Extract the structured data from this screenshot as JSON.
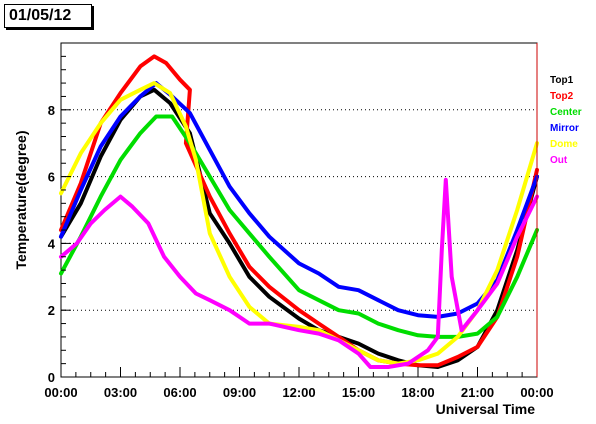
{
  "title": "01/05/12",
  "chart_data": {
    "type": "scatter",
    "xlabel": "Universal Time",
    "ylabel": "Temperature(degree)",
    "xlim": [
      0,
      24
    ],
    "ylim": [
      0,
      10
    ],
    "x_ticks": [
      {
        "value": 0,
        "label": "00:00"
      },
      {
        "value": 3,
        "label": "03:00"
      },
      {
        "value": 6,
        "label": "06:00"
      },
      {
        "value": 9,
        "label": "09:00"
      },
      {
        "value": 12,
        "label": "12:00"
      },
      {
        "value": 15,
        "label": "15:00"
      },
      {
        "value": 18,
        "label": "18:00"
      },
      {
        "value": 21,
        "label": "21:00"
      },
      {
        "value": 24,
        "label": "00:00"
      }
    ],
    "y_ticks": [
      0,
      2,
      4,
      6,
      8
    ],
    "grid": "horizontal dotted",
    "legend_position": "right",
    "series": [
      {
        "name": "Top1",
        "color": "#000000",
        "points": [
          [
            0,
            4.2
          ],
          [
            1,
            5.2
          ],
          [
            2,
            6.6
          ],
          [
            3,
            7.7
          ],
          [
            4,
            8.4
          ],
          [
            4.7,
            8.6
          ],
          [
            5.5,
            8.2
          ],
          [
            6.5,
            7.3
          ],
          [
            7.5,
            4.9
          ],
          [
            8.5,
            4.0
          ],
          [
            9.5,
            3.0
          ],
          [
            10.5,
            2.4
          ],
          [
            12,
            1.75
          ],
          [
            13,
            1.4
          ],
          [
            14,
            1.2
          ],
          [
            15,
            1.0
          ],
          [
            16,
            0.7
          ],
          [
            17,
            0.5
          ],
          [
            18,
            0.35
          ],
          [
            19,
            0.3
          ],
          [
            20,
            0.5
          ],
          [
            21,
            0.9
          ],
          [
            22,
            2.0
          ],
          [
            23,
            3.8
          ],
          [
            24,
            6.0
          ]
        ]
      },
      {
        "name": "Top2",
        "color": "#ff0000",
        "points": [
          [
            0,
            4.4
          ],
          [
            1,
            5.8
          ],
          [
            2,
            7.6
          ],
          [
            3,
            8.5
          ],
          [
            4,
            9.3
          ],
          [
            4.7,
            9.6
          ],
          [
            5.3,
            9.4
          ],
          [
            6,
            8.9
          ],
          [
            6.5,
            8.6
          ],
          [
            6.3,
            7.0
          ],
          [
            7.5,
            5.4
          ],
          [
            8.5,
            4.3
          ],
          [
            9.5,
            3.3
          ],
          [
            10.5,
            2.7
          ],
          [
            12,
            2.0
          ],
          [
            13,
            1.6
          ],
          [
            14,
            1.2
          ],
          [
            15,
            0.8
          ],
          [
            16,
            0.5
          ],
          [
            17,
            0.4
          ],
          [
            18,
            0.35
          ],
          [
            19,
            0.35
          ],
          [
            20,
            0.6
          ],
          [
            21,
            0.9
          ],
          [
            22,
            1.8
          ],
          [
            23,
            3.6
          ],
          [
            24,
            6.2
          ]
        ]
      },
      {
        "name": "Center",
        "color": "#00dd00",
        "points": [
          [
            0,
            3.1
          ],
          [
            1,
            4.2
          ],
          [
            2,
            5.4
          ],
          [
            3,
            6.5
          ],
          [
            4,
            7.3
          ],
          [
            4.8,
            7.8
          ],
          [
            5.6,
            7.8
          ],
          [
            6.5,
            7.0
          ],
          [
            7.5,
            6.0
          ],
          [
            8.5,
            5.0
          ],
          [
            9.5,
            4.3
          ],
          [
            10.5,
            3.6
          ],
          [
            12,
            2.6
          ],
          [
            13,
            2.3
          ],
          [
            14,
            2.0
          ],
          [
            15,
            1.9
          ],
          [
            16,
            1.6
          ],
          [
            17,
            1.4
          ],
          [
            18,
            1.25
          ],
          [
            19,
            1.2
          ],
          [
            20,
            1.2
          ],
          [
            21,
            1.3
          ],
          [
            22,
            1.8
          ],
          [
            23,
            3.0
          ],
          [
            24,
            4.4
          ]
        ]
      },
      {
        "name": "Mirror",
        "color": "#0000ff",
        "points": [
          [
            0,
            4.2
          ],
          [
            1,
            5.6
          ],
          [
            2,
            6.9
          ],
          [
            3,
            7.8
          ],
          [
            4,
            8.4
          ],
          [
            4.8,
            8.8
          ],
          [
            5.6,
            8.4
          ],
          [
            6.5,
            7.9
          ],
          [
            7.5,
            6.8
          ],
          [
            8.5,
            5.7
          ],
          [
            9.5,
            4.9
          ],
          [
            10.5,
            4.2
          ],
          [
            12,
            3.4
          ],
          [
            13,
            3.1
          ],
          [
            14,
            2.7
          ],
          [
            15,
            2.6
          ],
          [
            16,
            2.3
          ],
          [
            17,
            2.0
          ],
          [
            18,
            1.85
          ],
          [
            19,
            1.8
          ],
          [
            20,
            1.9
          ],
          [
            21,
            2.2
          ],
          [
            22,
            2.9
          ],
          [
            23,
            4.4
          ],
          [
            24,
            6.0
          ]
        ]
      },
      {
        "name": "Dome",
        "color": "#ffff00",
        "points": [
          [
            0,
            5.5
          ],
          [
            1,
            6.7
          ],
          [
            2,
            7.6
          ],
          [
            3,
            8.3
          ],
          [
            4,
            8.6
          ],
          [
            4.7,
            8.8
          ],
          [
            5.5,
            8.5
          ],
          [
            6.3,
            7.5
          ],
          [
            6.8,
            6.5
          ],
          [
            7.5,
            4.3
          ],
          [
            8.5,
            3.0
          ],
          [
            9.5,
            2.1
          ],
          [
            10.5,
            1.6
          ],
          [
            12,
            1.5
          ],
          [
            13,
            1.4
          ],
          [
            14,
            1.1
          ],
          [
            15,
            0.8
          ],
          [
            16,
            0.5
          ],
          [
            17,
            0.4
          ],
          [
            18,
            0.5
          ],
          [
            19,
            0.7
          ],
          [
            20,
            1.2
          ],
          [
            21,
            2.0
          ],
          [
            22,
            3.2
          ],
          [
            23,
            5.0
          ],
          [
            24,
            7.0
          ]
        ]
      },
      {
        "name": "Out",
        "color": "#ff00ff",
        "points": [
          [
            0,
            3.6
          ],
          [
            0.8,
            4.0
          ],
          [
            1.5,
            4.6
          ],
          [
            2.2,
            5.0
          ],
          [
            3,
            5.4
          ],
          [
            3.6,
            5.1
          ],
          [
            4.4,
            4.6
          ],
          [
            5.2,
            3.6
          ],
          [
            6,
            3.0
          ],
          [
            6.8,
            2.5
          ],
          [
            7.5,
            2.3
          ],
          [
            8.5,
            2.0
          ],
          [
            9.5,
            1.6
          ],
          [
            10.5,
            1.6
          ],
          [
            12,
            1.4
          ],
          [
            13,
            1.3
          ],
          [
            14,
            1.1
          ],
          [
            15,
            0.7
          ],
          [
            15.6,
            0.3
          ],
          [
            16.5,
            0.3
          ],
          [
            17.5,
            0.4
          ],
          [
            18.5,
            0.8
          ],
          [
            19,
            1.2
          ],
          [
            19.2,
            3.8
          ],
          [
            19.4,
            5.9
          ],
          [
            19.7,
            3.0
          ],
          [
            20.2,
            1.4
          ],
          [
            21,
            2.0
          ],
          [
            22,
            2.8
          ],
          [
            23,
            4.2
          ],
          [
            24,
            5.4
          ]
        ]
      }
    ]
  }
}
